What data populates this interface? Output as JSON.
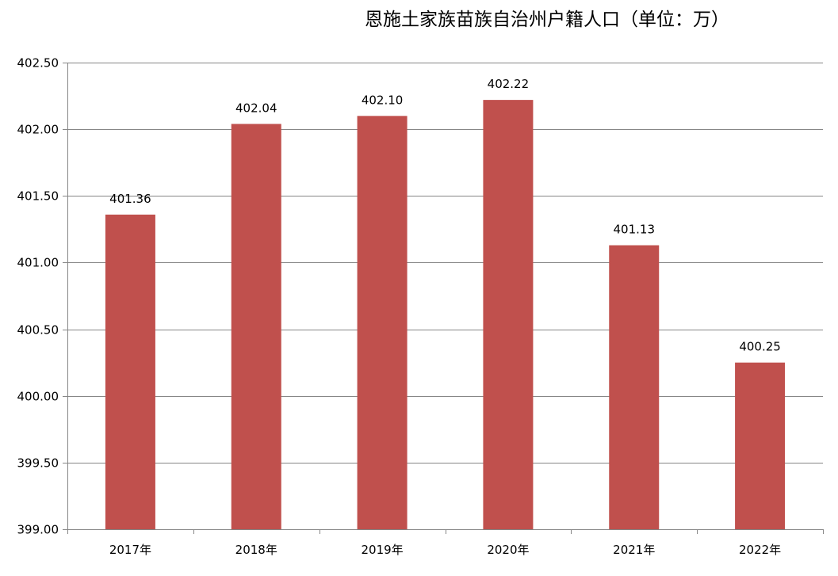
{
  "chart_data": {
    "type": "bar",
    "title": "恩施土家族苗族自治州户籍人口（单位：万）",
    "xlabel": "",
    "ylabel": "",
    "categories": [
      "2017年",
      "2018年",
      "2019年",
      "2020年",
      "2021年",
      "2022年"
    ],
    "values": [
      401.36,
      402.04,
      402.1,
      402.22,
      401.13,
      400.25
    ],
    "data_labels": [
      "401.36",
      "402.04",
      "402.10",
      "402.22",
      "401.13",
      "400.25"
    ],
    "ylim": [
      399.0,
      402.5
    ],
    "yticks": [
      399.0,
      399.5,
      400.0,
      400.5,
      401.0,
      401.5,
      402.0,
      402.5
    ],
    "ytick_labels": [
      "399.00",
      "399.50",
      "400.00",
      "400.50",
      "401.00",
      "401.50",
      "402.00",
      "402.50"
    ],
    "grid": true,
    "legend": "none",
    "colors": {
      "bar": "#c0504d",
      "grid": "#868686",
      "axis": "#868686"
    }
  }
}
